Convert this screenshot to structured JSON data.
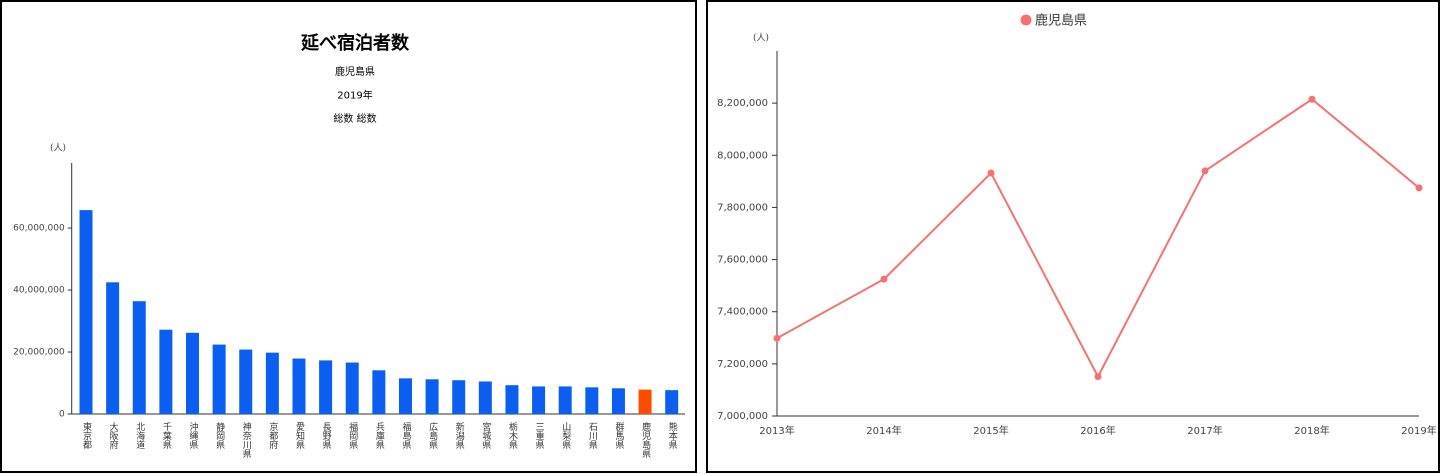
{
  "chart_data": [
    {
      "type": "bar",
      "title": "延べ宿泊者数",
      "subtitles": [
        "鹿児島県",
        "2019年",
        "総数 総数"
      ],
      "y_unit": "(人)",
      "categories": [
        "東京都",
        "大阪府",
        "北海道",
        "千葉県",
        "沖縄県",
        "静岡県",
        "神奈川県",
        "京都府",
        "愛知県",
        "長野県",
        "福岡県",
        "兵庫県",
        "福島県",
        "広島県",
        "新潟県",
        "宮城県",
        "栃木県",
        "三重県",
        "山梨県",
        "石川県",
        "群馬県",
        "鹿児島県",
        "熊本県"
      ],
      "values": [
        65800000,
        42500000,
        36400000,
        27200000,
        26200000,
        22400000,
        20800000,
        19800000,
        17900000,
        17300000,
        16600000,
        14100000,
        11500000,
        11200000,
        10900000,
        10500000,
        9300000,
        8900000,
        8900000,
        8600000,
        8300000,
        7870000,
        7700000
      ],
      "colors": [
        "#0a5ff0",
        "#0a5ff0",
        "#0a5ff0",
        "#0a5ff0",
        "#0a5ff0",
        "#0a5ff0",
        "#0a5ff0",
        "#0a5ff0",
        "#0a5ff0",
        "#0a5ff0",
        "#0a5ff0",
        "#0a5ff0",
        "#0a5ff0",
        "#0a5ff0",
        "#0a5ff0",
        "#0a5ff0",
        "#0a5ff0",
        "#0a5ff0",
        "#0a5ff0",
        "#0a5ff0",
        "#0a5ff0",
        "#ff4d00",
        "#0a5ff0"
      ],
      "ylim": [
        0,
        81000000
      ],
      "yticks": [
        0,
        {
          "value": 20000000,
          "label": "20,000,000"
        },
        {
          "value": 40000000,
          "label": "40,000,000"
        },
        {
          "value": 60000000,
          "label": "60,000,000"
        }
      ]
    },
    {
      "type": "line",
      "y_unit": "(人)",
      "categories": [
        "2013年",
        "2014年",
        "2015年",
        "2016年",
        "2017年",
        "2018年",
        "2019年"
      ],
      "series": [
        {
          "name": "鹿児島県",
          "color": "#f47272",
          "values": [
            7298000,
            7525000,
            7932000,
            7151000,
            7940000,
            8215000,
            7875000
          ]
        }
      ],
      "ylim": [
        7000000,
        8400000
      ],
      "yticks": [
        {
          "value": 7000000,
          "label": "7,000,000"
        },
        {
          "value": 7200000,
          "label": "7,200,000"
        },
        {
          "value": 7400000,
          "label": "7,400,000"
        },
        {
          "value": 7600000,
          "label": "7,600,000"
        },
        {
          "value": 7800000,
          "label": "7,800,000"
        },
        {
          "value": 8000000,
          "label": "8,000,000"
        },
        {
          "value": 8200000,
          "label": "8,200,000"
        }
      ]
    }
  ]
}
